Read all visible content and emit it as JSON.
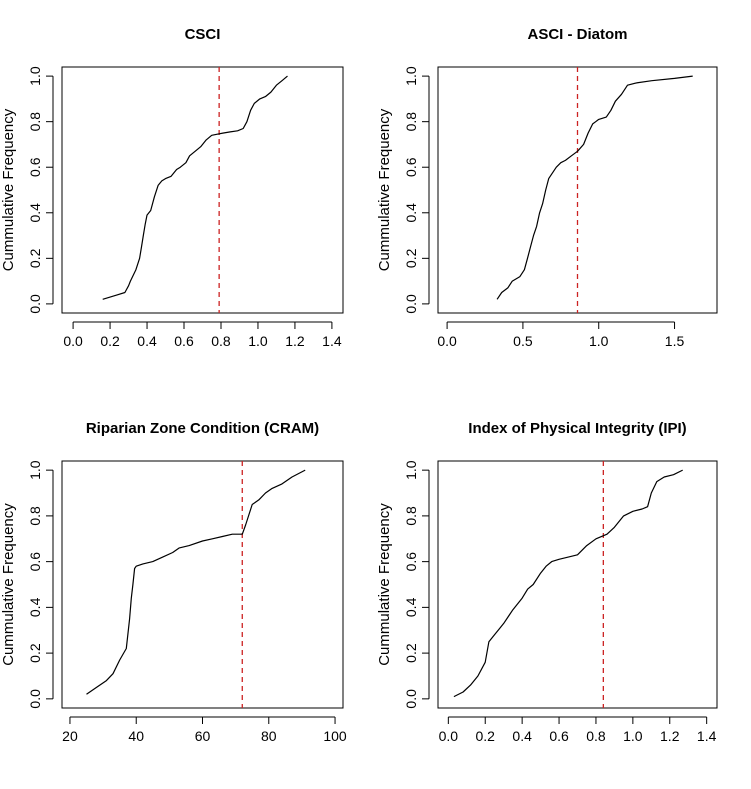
{
  "figure": {
    "vline_color": "#cc2222",
    "line_color": "#000000"
  },
  "chart_data": [
    {
      "type": "line",
      "title": "CSCI",
      "ylabel": "Cummulative Frequency",
      "xlabel": "",
      "xlim": [
        -0.06,
        1.46
      ],
      "ylim": [
        -0.04,
        1.04
      ],
      "xticks": [
        0.0,
        0.2,
        0.4,
        0.6,
        0.8,
        1.0,
        1.2,
        1.4
      ],
      "xtick_labels": [
        "0.0",
        "0.2",
        "0.4",
        "0.6",
        "0.8",
        "1.0",
        "1.2",
        "1.4"
      ],
      "yticks": [
        0.0,
        0.2,
        0.4,
        0.6,
        0.8,
        1.0
      ],
      "ytick_labels": [
        "0.0",
        "0.2",
        "0.4",
        "0.6",
        "0.8",
        "1.0"
      ],
      "threshold": 0.79,
      "series": [
        {
          "x": [
            0.16,
            0.2,
            0.24,
            0.28,
            0.3,
            0.31,
            0.34,
            0.36,
            0.37,
            0.38,
            0.39,
            0.4,
            0.42,
            0.44,
            0.46,
            0.48,
            0.5,
            0.53,
            0.56,
            0.58,
            0.61,
            0.63,
            0.66,
            0.69,
            0.72,
            0.75,
            0.78,
            0.81,
            0.85,
            0.89,
            0.92,
            0.94,
            0.96,
            0.98,
            1.01,
            1.04,
            1.07,
            1.1,
            1.13,
            1.16
          ],
          "y": [
            0.02,
            0.03,
            0.04,
            0.05,
            0.08,
            0.1,
            0.15,
            0.2,
            0.25,
            0.3,
            0.35,
            0.39,
            0.41,
            0.47,
            0.52,
            0.54,
            0.55,
            0.56,
            0.59,
            0.6,
            0.62,
            0.65,
            0.67,
            0.69,
            0.72,
            0.74,
            0.745,
            0.75,
            0.755,
            0.76,
            0.77,
            0.8,
            0.85,
            0.88,
            0.9,
            0.91,
            0.93,
            0.96,
            0.98,
            1.0
          ]
        }
      ]
    },
    {
      "type": "line",
      "title": "ASCI - Diatom",
      "ylabel": "Cummulative Frequency",
      "xlabel": "",
      "xlim": [
        -0.06,
        1.78
      ],
      "ylim": [
        -0.04,
        1.04
      ],
      "xticks": [
        0.0,
        0.5,
        1.0,
        1.5
      ],
      "xtick_labels": [
        "0.0",
        "0.5",
        "1.0",
        "1.5"
      ],
      "yticks": [
        0.0,
        0.2,
        0.4,
        0.6,
        0.8,
        1.0
      ],
      "ytick_labels": [
        "0.0",
        "0.2",
        "0.4",
        "0.6",
        "0.8",
        "1.0"
      ],
      "threshold": 0.86,
      "series": [
        {
          "x": [
            0.33,
            0.36,
            0.4,
            0.43,
            0.48,
            0.51,
            0.53,
            0.55,
            0.57,
            0.59,
            0.61,
            0.63,
            0.65,
            0.67,
            0.69,
            0.72,
            0.75,
            0.78,
            0.82,
            0.86,
            0.9,
            0.93,
            0.96,
            0.98,
            1.0,
            1.05,
            1.08,
            1.11,
            1.15,
            1.19,
            1.25,
            1.35,
            1.5,
            1.62
          ],
          "y": [
            0.02,
            0.05,
            0.07,
            0.1,
            0.12,
            0.15,
            0.2,
            0.25,
            0.3,
            0.34,
            0.4,
            0.44,
            0.5,
            0.55,
            0.57,
            0.6,
            0.62,
            0.63,
            0.65,
            0.67,
            0.7,
            0.75,
            0.79,
            0.8,
            0.81,
            0.82,
            0.85,
            0.89,
            0.92,
            0.96,
            0.97,
            0.98,
            0.99,
            1.0
          ]
        }
      ]
    },
    {
      "type": "line",
      "title": "Riparian Zone Condition (CRAM)",
      "ylabel": "Cummulative Frequency",
      "xlabel": "",
      "xlim": [
        17.6,
        102.4
      ],
      "ylim": [
        -0.04,
        1.04
      ],
      "xticks": [
        20,
        40,
        60,
        80,
        100
      ],
      "xtick_labels": [
        "20",
        "40",
        "60",
        "80",
        "100"
      ],
      "yticks": [
        0.0,
        0.2,
        0.4,
        0.6,
        0.8,
        1.0
      ],
      "ytick_labels": [
        "0.0",
        "0.2",
        "0.4",
        "0.6",
        "0.8",
        "1.0"
      ],
      "threshold": 72,
      "series": [
        {
          "x": [
            25,
            28,
            31,
            33,
            35,
            37,
            38,
            38.5,
            39,
            39.5,
            40,
            42,
            45,
            48,
            51,
            53,
            56,
            60,
            63,
            66,
            69,
            72,
            73,
            75,
            77,
            79,
            81,
            84,
            87,
            91
          ],
          "y": [
            0.02,
            0.05,
            0.08,
            0.11,
            0.17,
            0.22,
            0.35,
            0.44,
            0.5,
            0.57,
            0.58,
            0.59,
            0.6,
            0.62,
            0.64,
            0.66,
            0.67,
            0.69,
            0.7,
            0.71,
            0.72,
            0.72,
            0.76,
            0.85,
            0.87,
            0.9,
            0.92,
            0.94,
            0.97,
            1.0
          ]
        }
      ]
    },
    {
      "type": "line",
      "title": "Index of Physical Integrity (IPI)",
      "ylabel": "Cummulative Frequency",
      "xlabel": "",
      "xlim": [
        -0.056,
        1.456
      ],
      "ylim": [
        -0.04,
        1.04
      ],
      "xticks": [
        0.0,
        0.2,
        0.4,
        0.6,
        0.8,
        1.0,
        1.2,
        1.4
      ],
      "xtick_labels": [
        "0.0",
        "0.2",
        "0.4",
        "0.6",
        "0.8",
        "1.0",
        "1.2",
        "1.4"
      ],
      "yticks": [
        0.0,
        0.2,
        0.4,
        0.6,
        0.8,
        1.0
      ],
      "ytick_labels": [
        "0.0",
        "0.2",
        "0.4",
        "0.6",
        "0.8",
        "1.0"
      ],
      "threshold": 0.84,
      "series": [
        {
          "x": [
            0.03,
            0.08,
            0.12,
            0.16,
            0.2,
            0.22,
            0.24,
            0.28,
            0.3,
            0.35,
            0.4,
            0.43,
            0.46,
            0.5,
            0.53,
            0.56,
            0.6,
            0.65,
            0.7,
            0.75,
            0.8,
            0.86,
            0.9,
            0.95,
            1.0,
            1.05,
            1.08,
            1.1,
            1.13,
            1.17,
            1.22,
            1.27
          ],
          "y": [
            0.01,
            0.03,
            0.06,
            0.1,
            0.16,
            0.25,
            0.27,
            0.31,
            0.33,
            0.39,
            0.44,
            0.48,
            0.5,
            0.55,
            0.58,
            0.6,
            0.61,
            0.62,
            0.63,
            0.67,
            0.7,
            0.72,
            0.75,
            0.8,
            0.82,
            0.83,
            0.84,
            0.9,
            0.95,
            0.97,
            0.98,
            1.0
          ]
        }
      ]
    }
  ]
}
